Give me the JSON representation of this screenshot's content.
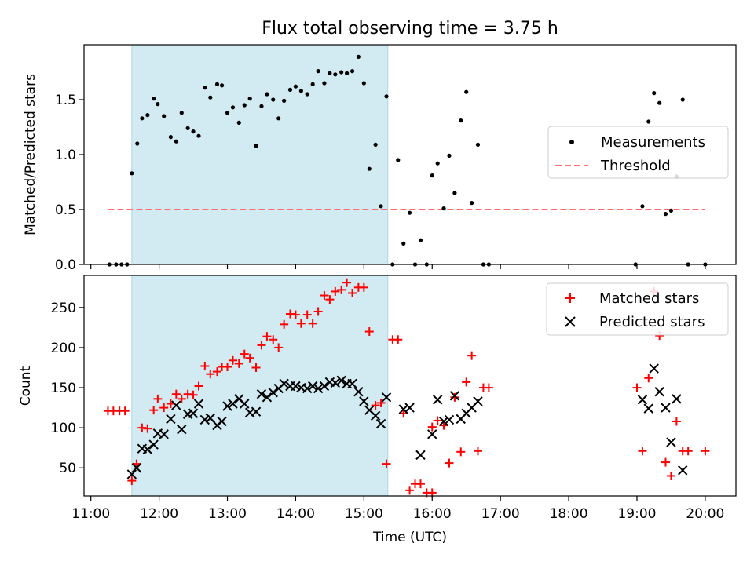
{
  "title": "Flux total observing time = 3.75 h",
  "xlabel": "Time (UTC)",
  "x_tick_labels": [
    "11:00",
    "12:00",
    "13:00",
    "14:00",
    "15:00",
    "16:00",
    "17:00",
    "18:00",
    "19:00",
    "20:00"
  ],
  "x_range_hours": [
    10.9,
    20.45
  ],
  "shaded_span_hours": [
    11.6,
    15.35
  ],
  "colors": {
    "shade": "#add8e6",
    "matched": "#ff0000",
    "predicted": "#000000",
    "threshold": "#ff6f6f",
    "measurements": "#000000"
  },
  "chart_data": [
    {
      "type": "scatter",
      "ylabel": "Matched/Predicted stars",
      "ylim": [
        0,
        2.0
      ],
      "y_ticks": [
        0.0,
        0.5,
        1.0,
        1.5
      ],
      "y_tick_labels": [
        "0.0",
        "0.5",
        "1.0",
        "1.5"
      ],
      "legend": {
        "placement": "center-right",
        "entries": [
          "Measurements",
          "Threshold"
        ]
      },
      "threshold": {
        "name": "Threshold",
        "y": 0.5,
        "x_range": [
          11.25,
          20.0
        ]
      },
      "series": [
        {
          "name": "Measurements",
          "x": [
            11.27,
            11.37,
            11.45,
            11.53,
            11.6,
            11.68,
            11.75,
            11.83,
            11.92,
            11.98,
            12.07,
            12.17,
            12.25,
            12.33,
            12.42,
            12.5,
            12.58,
            12.67,
            12.75,
            12.85,
            12.92,
            13.0,
            13.08,
            13.17,
            13.25,
            13.33,
            13.42,
            13.5,
            13.58,
            13.67,
            13.75,
            13.83,
            13.92,
            14.0,
            14.08,
            14.17,
            14.25,
            14.33,
            14.42,
            14.5,
            14.58,
            14.67,
            14.75,
            14.83,
            14.92,
            15.0,
            15.08,
            15.17,
            15.25,
            15.33,
            15.42,
            15.5,
            15.58,
            15.67,
            15.75,
            15.83,
            15.92,
            16.0,
            16.08,
            16.17,
            16.25,
            16.33,
            16.42,
            16.5,
            16.58,
            16.67,
            16.75,
            16.83,
            18.98,
            19.08,
            19.17,
            19.25,
            19.33,
            19.42,
            19.5,
            19.58,
            19.67,
            19.75,
            20.0
          ],
          "y": [
            0.0,
            0.0,
            0.0,
            0.0,
            0.83,
            1.1,
            1.33,
            1.36,
            1.51,
            1.46,
            1.35,
            1.16,
            1.12,
            1.38,
            1.24,
            1.21,
            1.17,
            1.61,
            1.52,
            1.64,
            1.63,
            1.38,
            1.43,
            1.29,
            1.45,
            1.51,
            1.08,
            1.44,
            1.55,
            1.5,
            1.33,
            1.49,
            1.59,
            1.62,
            1.58,
            1.55,
            1.64,
            1.76,
            1.65,
            1.74,
            1.73,
            1.75,
            1.74,
            1.76,
            1.89,
            1.65,
            0.87,
            1.09,
            0.53,
            1.53,
            0.0,
            0.95,
            0.19,
            0.47,
            0.0,
            0.22,
            0.0,
            0.81,
            0.92,
            0.51,
            0.99,
            0.65,
            1.31,
            1.57,
            0.56,
            1.09,
            0.0,
            0.0,
            0.0,
            0.53,
            1.3,
            1.56,
            1.47,
            0.46,
            0.49,
            0.8,
            1.5,
            0.0,
            0.0
          ]
        }
      ]
    },
    {
      "type": "scatter",
      "ylabel": "Count",
      "ylim": [
        15,
        290
      ],
      "y_ticks": [
        50,
        100,
        150,
        200,
        250
      ],
      "y_tick_labels": [
        "50",
        "100",
        "150",
        "200",
        "250"
      ],
      "legend": {
        "placement": "top-right",
        "entries": [
          "Matched stars",
          "Predicted stars"
        ]
      },
      "series": [
        {
          "name": "Matched stars",
          "marker": "plus",
          "x": [
            11.25,
            11.33,
            11.42,
            11.5,
            11.6,
            11.67,
            11.75,
            11.83,
            11.92,
            11.98,
            12.07,
            12.17,
            12.25,
            12.33,
            12.42,
            12.5,
            12.58,
            12.67,
            12.75,
            12.85,
            12.92,
            13.0,
            13.08,
            13.17,
            13.25,
            13.33,
            13.42,
            13.5,
            13.58,
            13.67,
            13.75,
            13.83,
            13.92,
            14.0,
            14.08,
            14.17,
            14.25,
            14.33,
            14.42,
            14.5,
            14.58,
            14.67,
            14.75,
            14.83,
            14.92,
            15.0,
            15.08,
            15.17,
            15.25,
            15.33,
            15.42,
            15.5,
            15.58,
            15.67,
            15.75,
            15.83,
            15.92,
            16.0,
            16.08,
            16.17,
            16.25,
            16.33,
            16.42,
            16.5,
            16.58,
            16.67,
            16.75,
            16.83,
            19.0,
            19.08,
            19.17,
            19.25,
            19.33,
            19.42,
            19.5,
            19.58,
            19.67,
            19.75,
            20.0
          ],
          "y": [
            121,
            121,
            121,
            121,
            34,
            55,
            100,
            99,
            122,
            136,
            125,
            130,
            142,
            136,
            142,
            141,
            152,
            177,
            167,
            170,
            176,
            176,
            184,
            180,
            192,
            187,
            175,
            203,
            214,
            210,
            200,
            229,
            242,
            241,
            230,
            241,
            230,
            245,
            265,
            260,
            270,
            272,
            281,
            268,
            275,
            275,
            220,
            128,
            131,
            55,
            210,
            210,
            118,
            22,
            30,
            30,
            19,
            19,
            109,
            103,
            56,
            138,
            70,
            157,
            190,
            71,
            150,
            150,
            150,
            71,
            162,
            270,
            215,
            57,
            40,
            108,
            71,
            71,
            71
          ],
          "extra_points": [
            {
              "x": 16.0,
              "y": 101
            }
          ]
        },
        {
          "name": "Predicted stars",
          "marker": "x",
          "x": [
            11.6,
            11.67,
            11.75,
            11.83,
            11.92,
            11.98,
            12.07,
            12.17,
            12.25,
            12.33,
            12.42,
            12.5,
            12.58,
            12.67,
            12.75,
            12.85,
            12.92,
            13.0,
            13.08,
            13.17,
            13.25,
            13.33,
            13.42,
            13.5,
            13.58,
            13.67,
            13.75,
            13.83,
            13.92,
            14.0,
            14.08,
            14.17,
            14.25,
            14.33,
            14.42,
            14.5,
            14.58,
            14.67,
            14.75,
            14.83,
            14.92,
            15.0,
            15.08,
            15.17,
            15.25,
            15.33,
            15.58,
            15.67,
            15.83,
            16.0,
            16.08,
            16.17,
            16.25,
            16.33,
            16.42,
            16.5,
            16.58,
            16.67,
            19.08,
            19.17,
            19.25,
            19.33,
            19.42,
            19.5,
            19.58,
            19.67
          ],
          "y": [
            42,
            50,
            74,
            73,
            79,
            93,
            92,
            111,
            128,
            98,
            117,
            118,
            130,
            110,
            112,
            103,
            108,
            127,
            130,
            136,
            130,
            119,
            120,
            142,
            138,
            144,
            149,
            155,
            152,
            152,
            150,
            149,
            152,
            149,
            152,
            157,
            156,
            159,
            155,
            155,
            145,
            133,
            122,
            115,
            105,
            138,
            123,
            125,
            66,
            92,
            135,
            108,
            110,
            140,
            111,
            118,
            125,
            133,
            135,
            124,
            174,
            145,
            125,
            82,
            136,
            47
          ]
        }
      ]
    }
  ]
}
